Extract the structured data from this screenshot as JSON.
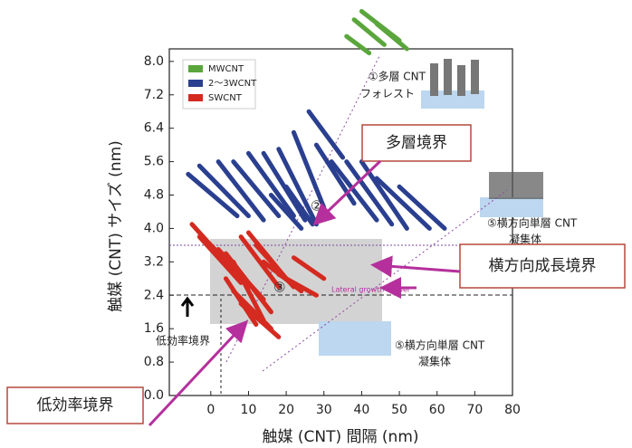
{
  "chart_data": {
    "type": "segments",
    "x_label": "触媒 (CNT) 間隔 (nm)",
    "y_label": "触媒 (CNT) サイズ (nm)",
    "xlim": [
      -11,
      80
    ],
    "ylim": [
      0,
      8.3
    ],
    "xticks": [
      0,
      10,
      20,
      30,
      40,
      50,
      60,
      70,
      80
    ],
    "yticks": [
      {
        "value": 0,
        "label": "0.0"
      },
      {
        "value": 0.8,
        "label": "0.8"
      },
      {
        "value": 1.6,
        "label": "1.6"
      },
      {
        "value": 2.4,
        "label": "2.4"
      },
      {
        "value": 3.2,
        "label": "3.2"
      },
      {
        "value": 4,
        "label": "4.0"
      },
      {
        "value": 4.8,
        "label": "4.8"
      },
      {
        "value": 5.6,
        "label": "5.6"
      },
      {
        "value": 6.4,
        "label": "6.4"
      },
      {
        "value": 7.2,
        "label": "7.2"
      },
      {
        "value": 8,
        "label": "8.0"
      }
    ],
    "series": [
      {
        "name": "MWCNT",
        "color": "#5aa63c",
        "segments": [
          [
            38,
            9.0,
            46,
            8.4
          ],
          [
            40,
            9.2,
            50,
            8.5
          ],
          [
            44,
            8.9,
            52,
            8.3
          ],
          [
            36,
            8.6,
            42,
            8.2
          ]
        ]
      },
      {
        "name": "2～3WCNT",
        "color": "#2a3f8f",
        "segments": [
          [
            -6,
            5.3,
            7,
            4.3
          ],
          [
            -3,
            5.5,
            10,
            4.3
          ],
          [
            2,
            5.6,
            14,
            4.2
          ],
          [
            6,
            5.6,
            18,
            4.3
          ],
          [
            10,
            5.8,
            22,
            4.3
          ],
          [
            14,
            5.8,
            25,
            4.2
          ],
          [
            18,
            5.9,
            28,
            4.1
          ],
          [
            22,
            6.3,
            30,
            4.5
          ],
          [
            26,
            6.8,
            35,
            5.7
          ],
          [
            28,
            6.0,
            38,
            4.6
          ],
          [
            32,
            5.6,
            44,
            4.2
          ],
          [
            36,
            5.6,
            48,
            4.1
          ],
          [
            40,
            5.6,
            52,
            4.0
          ],
          [
            44,
            5.2,
            58,
            4.0
          ],
          [
            50,
            5.0,
            62,
            4.0
          ],
          [
            16,
            4.8,
            24,
            4.0
          ],
          [
            20,
            5.0,
            27,
            4.1
          ]
        ]
      },
      {
        "name": "SWCNT",
        "color": "#d42a20",
        "segments": [
          [
            -5,
            4.1,
            10,
            2.6
          ],
          [
            -3,
            3.8,
            8,
            2.7
          ],
          [
            0,
            3.6,
            12,
            2.5
          ],
          [
            2,
            3.5,
            14,
            2.3
          ],
          [
            4,
            3.4,
            16,
            2.0
          ],
          [
            6,
            3.2,
            14,
            1.8
          ],
          [
            8,
            3.8,
            18,
            2.6
          ],
          [
            10,
            3.9,
            20,
            2.8
          ],
          [
            12,
            3.6,
            22,
            2.6
          ],
          [
            4,
            2.8,
            12,
            1.7
          ],
          [
            6,
            2.5,
            16,
            1.6
          ],
          [
            14,
            3.2,
            24,
            2.5
          ],
          [
            18,
            2.9,
            28,
            2.4
          ],
          [
            22,
            3.3,
            30,
            2.8
          ],
          [
            8,
            2.2,
            18,
            1.4
          ]
        ]
      }
    ],
    "annotations": {
      "forest_1": "①多層 CNT",
      "forest_2": "フォレスト",
      "region_2": "②",
      "region_3": "③",
      "lateral_upper_1": "⑤横方向単層 CNT",
      "lateral_upper_2": "凝集体",
      "lateral_lower_1": "⑤横方向単層 CNT",
      "lateral_lower_2": "凝集体",
      "lateral_border": "Lateral growth border",
      "low_eff_inner": "低効率境界",
      "callout_multi": "多層境界",
      "callout_lateral": "横方向成長境界",
      "callout_low": "低効率境界"
    }
  }
}
